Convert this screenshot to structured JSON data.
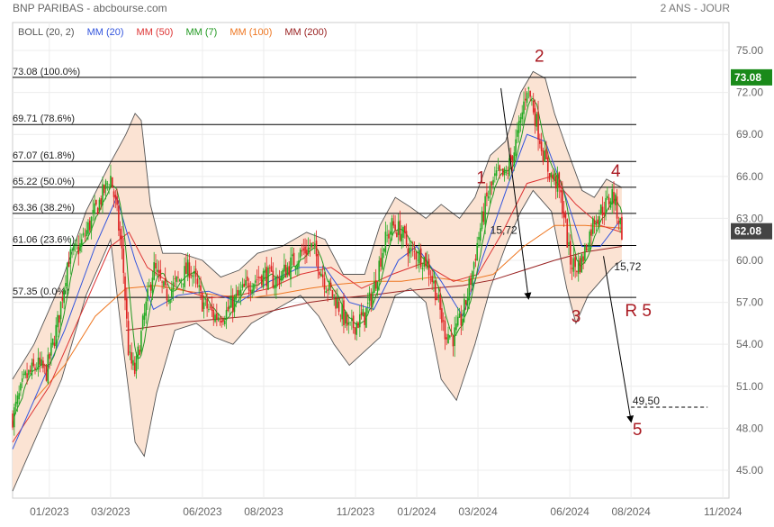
{
  "header": {
    "title": "BNP PARIBAS - abcbourse.com",
    "period": "2 ANS - JOUR"
  },
  "legend": [
    {
      "label": "BOLL (20, 2)",
      "color": "#555555"
    },
    {
      "label": "MM (20)",
      "color": "#3355dd"
    },
    {
      "label": "MM (50)",
      "color": "#dd3333"
    },
    {
      "label": "MM (7)",
      "color": "#229922"
    },
    {
      "label": "MM (100)",
      "color": "#ee7722"
    },
    {
      "label": "MM (200)",
      "color": "#992222"
    }
  ],
  "colors": {
    "up_candle": "#22aa22",
    "down_candle": "#dd2222",
    "bollinger_fill": "#fbe3d3",
    "bollinger_line": "#555555",
    "last_price_badge": "#1a8a1a",
    "current_badge": "#444444",
    "annotation": "#aa1a22"
  },
  "chart_data": {
    "type": "candlestick",
    "x_tick_labels": [
      "01/2023",
      "03/2023",
      "06/2023",
      "08/2023",
      "11/2023",
      "01/2024",
      "03/2024",
      "06/2024",
      "08/2024",
      "11/2024"
    ],
    "x_tick_months": [
      0,
      2,
      5,
      7,
      10,
      12,
      14,
      17,
      19,
      22
    ],
    "x_range_months": [
      -1.2,
      22.2
    ],
    "y_ticks": [
      45.0,
      48.0,
      51.0,
      54.0,
      57.0,
      60.0,
      63.0,
      66.0,
      69.0,
      72.0,
      75.0
    ],
    "y_tick_labels": [
      "45.00",
      "48.00",
      "51.00",
      "54.00",
      "57.00",
      "60.00",
      "63.00",
      "66.00",
      "69.00",
      "72.00",
      "75.00"
    ],
    "ylim": [
      43.0,
      77.0
    ],
    "last_price": 73.08,
    "last_price_label": "73.08",
    "current_price": 62.08,
    "current_price_label": "62.08",
    "fibonacci_levels": [
      {
        "value": 73.08,
        "label": "73.08  (100.0%)"
      },
      {
        "value": 69.71,
        "label": "69.71  (78.6%)"
      },
      {
        "value": 67.07,
        "label": "67.07  (61.8%)"
      },
      {
        "value": 65.22,
        "label": "65.22  (50.0%)"
      },
      {
        "value": 63.36,
        "label": "63.36  (38.2%)"
      },
      {
        "value": 61.06,
        "label": "61.06  (23.6%)"
      },
      {
        "value": 57.35,
        "label": "57.35  (0.0%)"
      }
    ],
    "price_path": [
      [
        -1.2,
        48.8
      ],
      [
        -0.8,
        51.5
      ],
      [
        -0.4,
        52.5
      ],
      [
        -0.1,
        52.0
      ],
      [
        0.3,
        55.8
      ],
      [
        0.6,
        60.0
      ],
      [
        1.0,
        61.0
      ],
      [
        1.4,
        63.0
      ],
      [
        1.7,
        64.5
      ],
      [
        2.0,
        66.0
      ],
      [
        2.2,
        63.5
      ],
      [
        2.4,
        60.0
      ],
      [
        2.6,
        53.0
      ],
      [
        2.8,
        52.0
      ],
      [
        3.1,
        56.0
      ],
      [
        3.4,
        59.5
      ],
      [
        3.8,
        57.5
      ],
      [
        4.2,
        58.5
      ],
      [
        4.6,
        59.5
      ],
      [
        5.0,
        57.0
      ],
      [
        5.4,
        56.0
      ],
      [
        5.8,
        56.3
      ],
      [
        6.2,
        57.5
      ],
      [
        6.6,
        58.5
      ],
      [
        7.0,
        59.0
      ],
      [
        7.4,
        58.5
      ],
      [
        7.8,
        59.5
      ],
      [
        8.2,
        60.5
      ],
      [
        8.6,
        61.0
      ],
      [
        9.0,
        58.5
      ],
      [
        9.4,
        57.0
      ],
      [
        9.8,
        55.0
      ],
      [
        10.0,
        55.5
      ],
      [
        10.3,
        56.0
      ],
      [
        10.6,
        58.0
      ],
      [
        10.9,
        61.0
      ],
      [
        11.2,
        62.5
      ],
      [
        11.5,
        62.0
      ],
      [
        11.8,
        60.5
      ],
      [
        12.0,
        60.5
      ],
      [
        12.3,
        60.0
      ],
      [
        12.6,
        58.0
      ],
      [
        12.9,
        55.0
      ],
      [
        13.2,
        54.5
      ],
      [
        13.5,
        56.0
      ],
      [
        13.8,
        59.0
      ],
      [
        14.0,
        61.5
      ],
      [
        14.3,
        64.5
      ],
      [
        14.6,
        66.0
      ],
      [
        14.9,
        66.0
      ],
      [
        15.2,
        68.0
      ],
      [
        15.4,
        70.0
      ],
      [
        15.6,
        72.5
      ],
      [
        15.8,
        71.0
      ],
      [
        16.0,
        69.0
      ],
      [
        16.2,
        67.0
      ],
      [
        16.4,
        66.0
      ],
      [
        16.6,
        65.5
      ],
      [
        16.8,
        63.5
      ],
      [
        17.0,
        60.0
      ],
      [
        17.2,
        59.5
      ],
      [
        17.4,
        60.0
      ],
      [
        17.6,
        61.5
      ],
      [
        17.8,
        63.0
      ],
      [
        18.0,
        63.5
      ],
      [
        18.2,
        64.0
      ],
      [
        18.4,
        64.8
      ],
      [
        18.6,
        63.0
      ],
      [
        18.7,
        62.1
      ]
    ],
    "ma_20": [
      [
        -1.2,
        46.5
      ],
      [
        -0.5,
        50.0
      ],
      [
        0.5,
        55.0
      ],
      [
        1.5,
        61.0
      ],
      [
        2.2,
        64.5
      ],
      [
        2.8,
        60.0
      ],
      [
        3.4,
        56.5
      ],
      [
        4.2,
        57.5
      ],
      [
        5.2,
        57.8
      ],
      [
        6.2,
        57.0
      ],
      [
        7.2,
        58.5
      ],
      [
        8.2,
        59.5
      ],
      [
        9.0,
        59.5
      ],
      [
        9.8,
        57.0
      ],
      [
        10.6,
        56.5
      ],
      [
        11.4,
        60.0
      ],
      [
        12.0,
        61.0
      ],
      [
        12.8,
        58.5
      ],
      [
        13.5,
        56.0
      ],
      [
        14.2,
        60.5
      ],
      [
        15.0,
        65.5
      ],
      [
        15.6,
        69.0
      ],
      [
        16.2,
        68.5
      ],
      [
        16.8,
        65.0
      ],
      [
        17.4,
        61.0
      ],
      [
        18.0,
        61.0
      ],
      [
        18.7,
        63.0
      ]
    ],
    "ma_50": [
      [
        -1.2,
        47.0
      ],
      [
        0.0,
        51.0
      ],
      [
        1.0,
        56.0
      ],
      [
        2.0,
        61.0
      ],
      [
        2.6,
        62.0
      ],
      [
        3.2,
        59.5
      ],
      [
        4.2,
        58.0
      ],
      [
        5.2,
        57.3
      ],
      [
        6.2,
        57.5
      ],
      [
        7.2,
        58.0
      ],
      [
        8.2,
        59.0
      ],
      [
        9.2,
        59.5
      ],
      [
        10.2,
        58.0
      ],
      [
        11.2,
        59.0
      ],
      [
        12.2,
        59.8
      ],
      [
        13.2,
        58.5
      ],
      [
        14.0,
        59.0
      ],
      [
        14.8,
        62.0
      ],
      [
        15.6,
        65.5
      ],
      [
        16.4,
        66.0
      ],
      [
        17.2,
        64.0
      ],
      [
        18.0,
        62.5
      ],
      [
        18.7,
        62.0
      ]
    ],
    "ma_100": [
      [
        -0.5,
        50.0
      ],
      [
        0.5,
        52.5
      ],
      [
        1.5,
        56.0
      ],
      [
        2.5,
        58.0
      ],
      [
        3.5,
        58.2
      ],
      [
        4.5,
        57.8
      ],
      [
        5.5,
        57.5
      ],
      [
        6.5,
        57.3
      ],
      [
        7.5,
        57.6
      ],
      [
        8.5,
        58.0
      ],
      [
        9.5,
        58.3
      ],
      [
        10.5,
        58.5
      ],
      [
        11.5,
        58.5
      ],
      [
        12.5,
        58.8
      ],
      [
        13.5,
        58.5
      ],
      [
        14.5,
        59.0
      ],
      [
        15.5,
        61.0
      ],
      [
        16.5,
        62.5
      ],
      [
        17.5,
        62.5
      ],
      [
        18.7,
        62.3
      ]
    ],
    "ma_200": [
      [
        2.5,
        55.0
      ],
      [
        3.5,
        55.3
      ],
      [
        4.5,
        55.6
      ],
      [
        5.5,
        55.8
      ],
      [
        6.5,
        56.0
      ],
      [
        7.5,
        56.5
      ],
      [
        8.5,
        57.0
      ],
      [
        9.5,
        57.3
      ],
      [
        10.5,
        57.5
      ],
      [
        11.5,
        57.8
      ],
      [
        12.5,
        58.0
      ],
      [
        13.5,
        58.2
      ],
      [
        14.5,
        58.6
      ],
      [
        15.5,
        59.3
      ],
      [
        16.5,
        60.0
      ],
      [
        17.5,
        60.6
      ],
      [
        18.7,
        61.0
      ]
    ],
    "bollinger_upper": [
      [
        -1.2,
        51.5
      ],
      [
        -0.5,
        54.0
      ],
      [
        0.4,
        58.5
      ],
      [
        1.2,
        63.5
      ],
      [
        2.0,
        67.0
      ],
      [
        2.5,
        69.0
      ],
      [
        2.8,
        70.5
      ],
      [
        3.0,
        70.0
      ],
      [
        3.3,
        64.0
      ],
      [
        3.7,
        60.5
      ],
      [
        4.3,
        60.5
      ],
      [
        5.0,
        60.0
      ],
      [
        5.6,
        58.8
      ],
      [
        6.2,
        59.3
      ],
      [
        6.8,
        60.5
      ],
      [
        7.6,
        61.0
      ],
      [
        8.4,
        62.0
      ],
      [
        9.0,
        61.5
      ],
      [
        9.6,
        59.0
      ],
      [
        10.3,
        59.0
      ],
      [
        10.8,
        62.5
      ],
      [
        11.3,
        64.5
      ],
      [
        11.8,
        63.8
      ],
      [
        12.3,
        63.0
      ],
      [
        12.8,
        64.0
      ],
      [
        13.4,
        63.0
      ],
      [
        13.9,
        64.5
      ],
      [
        14.4,
        67.5
      ],
      [
        14.9,
        68.5
      ],
      [
        15.4,
        72.0
      ],
      [
        15.8,
        73.5
      ],
      [
        16.2,
        73.0
      ],
      [
        16.5,
        70.5
      ],
      [
        16.9,
        68.0
      ],
      [
        17.4,
        65.0
      ],
      [
        17.8,
        64.5
      ],
      [
        18.2,
        65.8
      ],
      [
        18.7,
        65.2
      ]
    ],
    "bollinger_lower": [
      [
        -1.2,
        43.5
      ],
      [
        -0.5,
        47.0
      ],
      [
        0.4,
        51.5
      ],
      [
        1.2,
        57.5
      ],
      [
        2.0,
        61.5
      ],
      [
        2.4,
        54.0
      ],
      [
        2.8,
        47.0
      ],
      [
        3.1,
        46.0
      ],
      [
        3.5,
        50.5
      ],
      [
        4.1,
        55.0
      ],
      [
        4.8,
        55.5
      ],
      [
        5.4,
        54.5
      ],
      [
        6.0,
        54.0
      ],
      [
        6.6,
        55.5
      ],
      [
        7.4,
        56.5
      ],
      [
        8.2,
        57.5
      ],
      [
        8.8,
        56.0
      ],
      [
        9.3,
        54.0
      ],
      [
        9.8,
        52.5
      ],
      [
        10.3,
        53.5
      ],
      [
        10.8,
        54.5
      ],
      [
        11.3,
        57.5
      ],
      [
        11.8,
        58.0
      ],
      [
        12.3,
        57.0
      ],
      [
        12.8,
        51.5
      ],
      [
        13.3,
        50.0
      ],
      [
        13.9,
        54.0
      ],
      [
        14.4,
        58.0
      ],
      [
        14.9,
        61.0
      ],
      [
        15.4,
        63.5
      ],
      [
        15.8,
        65.0
      ],
      [
        16.4,
        63.5
      ],
      [
        16.9,
        58.0
      ],
      [
        17.2,
        55.5
      ],
      [
        17.6,
        57.5
      ],
      [
        18.0,
        58.5
      ],
      [
        18.4,
        59.5
      ],
      [
        18.7,
        60.0
      ]
    ],
    "wave_labels": [
      {
        "label": "1",
        "x": 13.95,
        "y": 65.5
      },
      {
        "label": "2",
        "x": 15.85,
        "y": 74.2
      },
      {
        "label": "3",
        "x": 17.05,
        "y": 55.6
      },
      {
        "label": "4",
        "x": 18.35,
        "y": 66.0
      },
      {
        "label": "R 5",
        "x": 18.8,
        "y": 56.0
      },
      {
        "label": "5",
        "x": 19.05,
        "y": 47.5
      }
    ],
    "arrows": [
      {
        "from": [
          14.75,
          72.3
        ],
        "to": [
          15.65,
          57.3
        ]
      },
      {
        "from": [
          18.1,
          60.3
        ],
        "to": [
          19.0,
          48.5
        ]
      }
    ],
    "value_annotations": [
      {
        "label": "15,72",
        "x": 14.4,
        "y": 61.9
      },
      {
        "label": "15,72",
        "x": 18.45,
        "y": 59.3
      },
      {
        "label": "49,50",
        "x": 19.05,
        "y": 49.7
      }
    ],
    "target_line": {
      "value": 49.5,
      "x_start": 19.0,
      "x_end": 21.5
    }
  }
}
